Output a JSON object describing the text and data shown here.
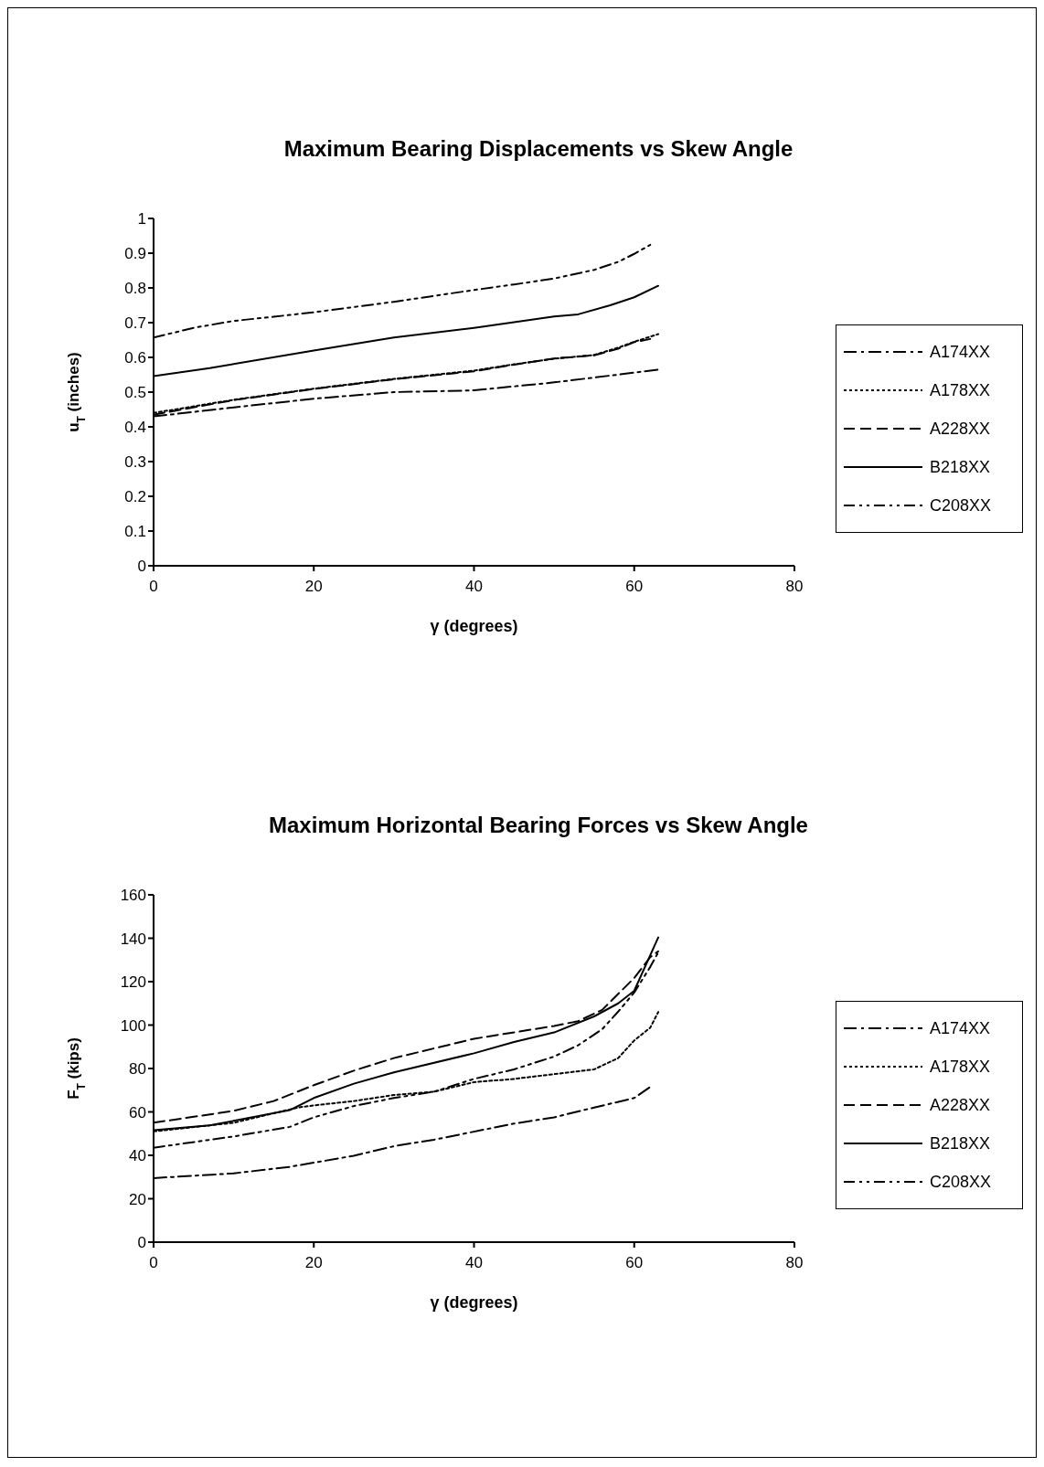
{
  "chart_data": [
    {
      "type": "line",
      "title": "Maximum Bearing Displacements vs Skew Angle",
      "xlabel": "γ (degrees)",
      "ylabel": "u$_{T}$ (inches)",
      "xlim": [
        0,
        80
      ],
      "xticks": [
        0,
        20,
        40,
        60,
        80
      ],
      "ylim": [
        0,
        1
      ],
      "yticks": [
        0,
        0.1,
        0.2,
        0.3,
        0.4,
        0.5,
        0.6,
        0.7,
        0.8,
        0.9,
        1
      ],
      "legend": "right",
      "marker": "none",
      "series": [
        {
          "name": "A174XX",
          "color": "#000000",
          "line_style": "dashdot",
          "x": [
            0,
            10,
            20,
            30,
            40,
            50,
            60,
            63
          ],
          "values": [
            0.43,
            0.456,
            0.481,
            0.5,
            0.505,
            0.528,
            0.556,
            0.565
          ]
        },
        {
          "name": "A178XX",
          "color": "#000000",
          "line_style": "dotted",
          "x": [
            0,
            10,
            20,
            30,
            40,
            45,
            50,
            55,
            58,
            60,
            63
          ],
          "values": [
            0.44,
            0.478,
            0.51,
            0.538,
            0.562,
            0.58,
            0.596,
            0.607,
            0.628,
            0.645,
            0.667
          ]
        },
        {
          "name": "A228XX",
          "color": "#000000",
          "line_style": "dashed",
          "x": [
            0,
            10,
            20,
            30,
            40,
            45,
            50,
            55,
            58,
            60,
            62
          ],
          "values": [
            0.435,
            0.477,
            0.509,
            0.537,
            0.56,
            0.579,
            0.597,
            0.606,
            0.625,
            0.644,
            0.653
          ]
        },
        {
          "name": "B218XX",
          "color": "#000000",
          "line_style": "solid",
          "x": [
            0,
            7,
            20,
            30,
            40,
            50,
            53,
            57,
            60,
            63
          ],
          "values": [
            0.546,
            0.569,
            0.62,
            0.657,
            0.685,
            0.718,
            0.724,
            0.75,
            0.773,
            0.806
          ]
        },
        {
          "name": "C208XX",
          "color": "#000000",
          "line_style": "dashdotdot",
          "x": [
            0,
            5,
            10,
            15,
            20,
            30,
            40,
            45,
            50,
            55,
            58,
            60,
            62
          ],
          "values": [
            0.657,
            0.685,
            0.705,
            0.717,
            0.73,
            0.76,
            0.794,
            0.81,
            0.827,
            0.852,
            0.875,
            0.898,
            0.924
          ]
        }
      ]
    },
    {
      "type": "line",
      "title": "Maximum Horizontal Bearing Forces vs Skew Angle",
      "xlabel": "γ (degrees)",
      "ylabel": "F$_{T}$ (kips)",
      "xlim": [
        0,
        80
      ],
      "xticks": [
        0,
        20,
        40,
        60,
        80
      ],
      "ylim": [
        0,
        160
      ],
      "yticks": [
        0,
        20,
        40,
        60,
        80,
        100,
        120,
        140,
        160
      ],
      "legend": "right",
      "marker": "none",
      "series": [
        {
          "name": "A174XX",
          "color": "#000000",
          "line_style": "dashdot",
          "x": [
            0,
            10,
            17,
            25,
            30,
            35,
            45,
            50,
            55,
            60,
            62
          ],
          "values": [
            29.5,
            31.7,
            34.7,
            39.8,
            44.2,
            47.2,
            54.6,
            57.5,
            62,
            66.4,
            71.5
          ]
        },
        {
          "name": "A178XX",
          "color": "#000000",
          "line_style": "dotted",
          "x": [
            0,
            10,
            18,
            20,
            25,
            30,
            35,
            40,
            45,
            50,
            55,
            58,
            60,
            62,
            63
          ],
          "values": [
            51,
            55,
            62,
            63,
            65,
            67.8,
            69.3,
            73.7,
            75.2,
            77.4,
            79.6,
            84.8,
            92.9,
            98.8,
            106
          ]
        },
        {
          "name": "A228XX",
          "color": "#000000",
          "line_style": "dashed",
          "x": [
            0,
            10,
            15,
            20,
            25,
            30,
            40,
            50,
            53,
            56,
            60,
            62,
            63
          ],
          "values": [
            55,
            60.5,
            65,
            72.3,
            79,
            84.8,
            93.7,
            99.6,
            101.8,
            107,
            121.7,
            131.3,
            134
          ]
        },
        {
          "name": "B218XX",
          "color": "#000000",
          "line_style": "solid",
          "x": [
            0,
            7,
            17,
            20,
            25,
            30,
            40,
            45,
            50,
            55,
            58,
            60,
            63
          ],
          "values": [
            51.6,
            53.8,
            60.8,
            66.4,
            73,
            78.2,
            87,
            92.2,
            96.6,
            104,
            110,
            115.8,
            140.4
          ]
        },
        {
          "name": "C208XX",
          "color": "#000000",
          "line_style": "dashdotdot",
          "x": [
            0,
            10,
            17,
            20,
            25,
            30,
            35,
            40,
            45,
            50,
            53,
            56,
            58,
            60,
            62,
            63
          ],
          "values": [
            43.5,
            48.7,
            53.1,
            57.5,
            62.7,
            66.4,
            69.3,
            75.2,
            79.6,
            85.5,
            90.7,
            98.1,
            106.2,
            115,
            126.8,
            133.5
          ]
        }
      ]
    }
  ]
}
